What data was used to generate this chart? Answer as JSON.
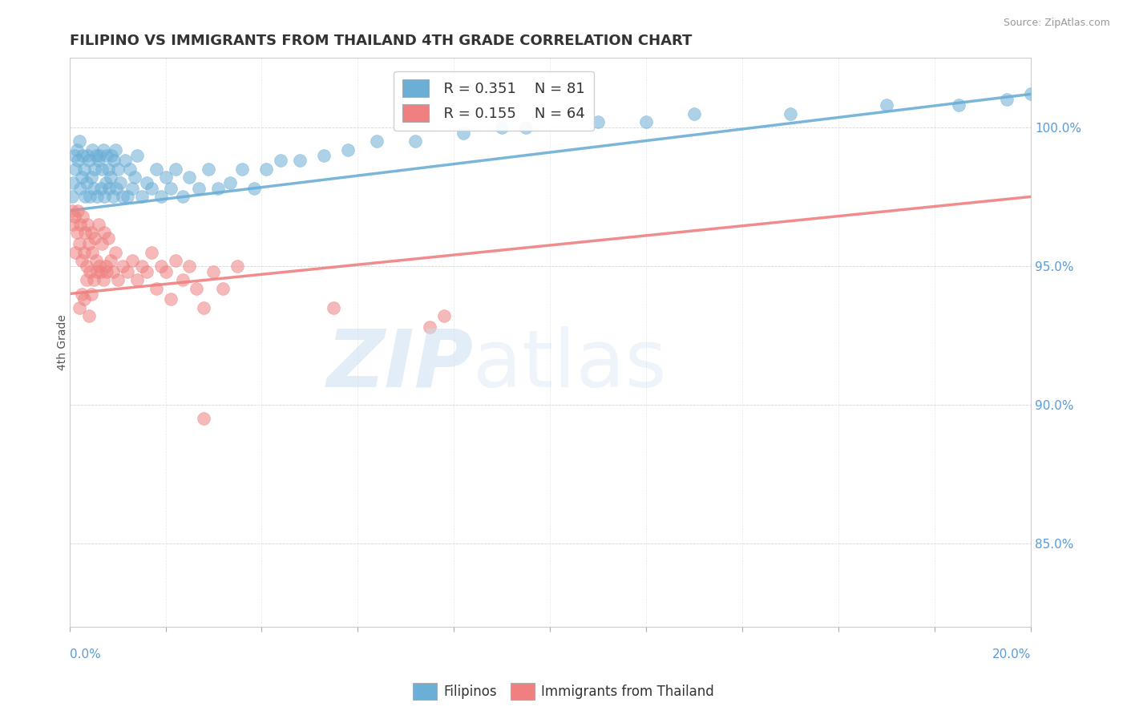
{
  "title": "FILIPINO VS IMMIGRANTS FROM THAILAND 4TH GRADE CORRELATION CHART",
  "source": "Source: ZipAtlas.com",
  "ylabel": "4th Grade",
  "xlim": [
    0.0,
    20.0
  ],
  "ylim": [
    82.0,
    102.5
  ],
  "ytick_values": [
    85.0,
    90.0,
    95.0,
    100.0
  ],
  "legend_r1": "R = 0.351",
  "legend_n1": "N = 81",
  "legend_r2": "R = 0.155",
  "legend_n2": "N = 64",
  "blue_color": "#6BAED6",
  "pink_color": "#F08080",
  "axis_color": "#5B9BD5",
  "filipinos_x": [
    0.05,
    0.08,
    0.1,
    0.12,
    0.15,
    0.18,
    0.2,
    0.22,
    0.25,
    0.28,
    0.3,
    0.32,
    0.35,
    0.38,
    0.4,
    0.42,
    0.45,
    0.48,
    0.5,
    0.52,
    0.55,
    0.58,
    0.6,
    0.62,
    0.65,
    0.68,
    0.7,
    0.72,
    0.75,
    0.78,
    0.8,
    0.82,
    0.85,
    0.88,
    0.9,
    0.92,
    0.95,
    0.98,
    1.0,
    1.05,
    1.1,
    1.15,
    1.2,
    1.25,
    1.3,
    1.35,
    1.4,
    1.5,
    1.6,
    1.7,
    1.8,
    1.9,
    2.0,
    2.1,
    2.2,
    2.35,
    2.5,
    2.7,
    2.9,
    3.1,
    3.35,
    3.6,
    3.85,
    4.1,
    4.4,
    4.8,
    5.3,
    5.8,
    6.4,
    7.2,
    8.2,
    9.5,
    11.0,
    13.0,
    15.0,
    17.0,
    18.5,
    19.5,
    20.0,
    9.0,
    12.0
  ],
  "filipinos_y": [
    97.5,
    98.0,
    99.0,
    98.5,
    99.2,
    98.8,
    99.5,
    97.8,
    98.2,
    99.0,
    98.5,
    97.5,
    98.0,
    99.0,
    98.8,
    97.5,
    98.2,
    99.2,
    97.8,
    98.5,
    99.0,
    97.5,
    98.8,
    99.0,
    97.8,
    98.5,
    99.2,
    97.5,
    98.0,
    99.0,
    98.5,
    97.8,
    98.2,
    99.0,
    97.5,
    98.8,
    99.2,
    97.8,
    98.5,
    98.0,
    97.5,
    98.8,
    97.5,
    98.5,
    97.8,
    98.2,
    99.0,
    97.5,
    98.0,
    97.8,
    98.5,
    97.5,
    98.2,
    97.8,
    98.5,
    97.5,
    98.2,
    97.8,
    98.5,
    97.8,
    98.0,
    98.5,
    97.8,
    98.5,
    98.8,
    98.8,
    99.0,
    99.2,
    99.5,
    99.5,
    99.8,
    100.0,
    100.2,
    100.5,
    100.5,
    100.8,
    100.8,
    101.0,
    101.2,
    100.0,
    100.2
  ],
  "thailand_x": [
    0.05,
    0.08,
    0.1,
    0.12,
    0.15,
    0.18,
    0.2,
    0.22,
    0.25,
    0.28,
    0.3,
    0.32,
    0.35,
    0.38,
    0.4,
    0.42,
    0.45,
    0.48,
    0.5,
    0.52,
    0.55,
    0.58,
    0.6,
    0.62,
    0.65,
    0.68,
    0.7,
    0.72,
    0.75,
    0.78,
    0.8,
    0.85,
    0.9,
    0.95,
    1.0,
    1.1,
    1.2,
    1.3,
    1.4,
    1.5,
    1.6,
    1.7,
    1.8,
    1.9,
    2.0,
    2.1,
    2.2,
    2.35,
    2.5,
    2.65,
    2.8,
    3.0,
    3.2,
    3.5,
    0.2,
    0.25,
    0.3,
    0.35,
    0.4,
    0.45,
    2.8,
    5.5,
    7.5,
    7.8
  ],
  "thailand_y": [
    97.0,
    96.5,
    96.8,
    95.5,
    96.2,
    97.0,
    95.8,
    96.5,
    95.2,
    96.8,
    95.5,
    96.2,
    95.0,
    96.5,
    95.8,
    94.8,
    96.2,
    95.5,
    94.5,
    96.0,
    95.2,
    94.8,
    96.5,
    95.0,
    94.8,
    95.8,
    94.5,
    96.2,
    95.0,
    94.8,
    96.0,
    95.2,
    94.8,
    95.5,
    94.5,
    95.0,
    94.8,
    95.2,
    94.5,
    95.0,
    94.8,
    95.5,
    94.2,
    95.0,
    94.8,
    93.8,
    95.2,
    94.5,
    95.0,
    94.2,
    93.5,
    94.8,
    94.2,
    95.0,
    93.5,
    94.0,
    93.8,
    94.5,
    93.2,
    94.0,
    89.5,
    93.5,
    92.8,
    93.2
  ]
}
